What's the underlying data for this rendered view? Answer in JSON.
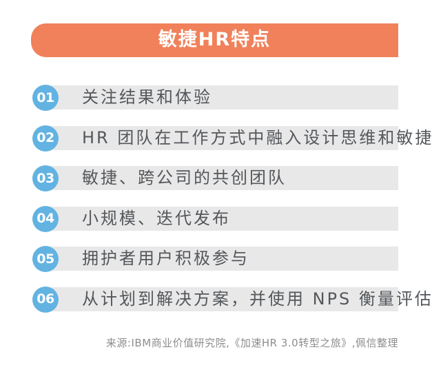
{
  "header": {
    "title": "敏捷HR特点"
  },
  "items": [
    {
      "number": "01",
      "text": "关注结果和体验"
    },
    {
      "number": "02",
      "text": "HR 团队在工作方式中融入设计思维和敏捷"
    },
    {
      "number": "03",
      "text": "敏捷、跨公司的共创团队"
    },
    {
      "number": "04",
      "text": "小规模、迭代发布"
    },
    {
      "number": "05",
      "text": "拥护者用户积极参与"
    },
    {
      "number": "06",
      "text": "从计划到解决方案，并使用 NPS 衡量评估"
    }
  ],
  "footer": {
    "source": "来源:IBM商业价值研究院,《加速HR 3.0转型之旅》,佩信整理"
  },
  "colors": {
    "accent_orange": "#F0815A",
    "badge_blue": "#62B3E1",
    "bar_gray": "#E9E8E8",
    "text_dark": "#53575B",
    "footer_gray": "#8E8C8C"
  }
}
